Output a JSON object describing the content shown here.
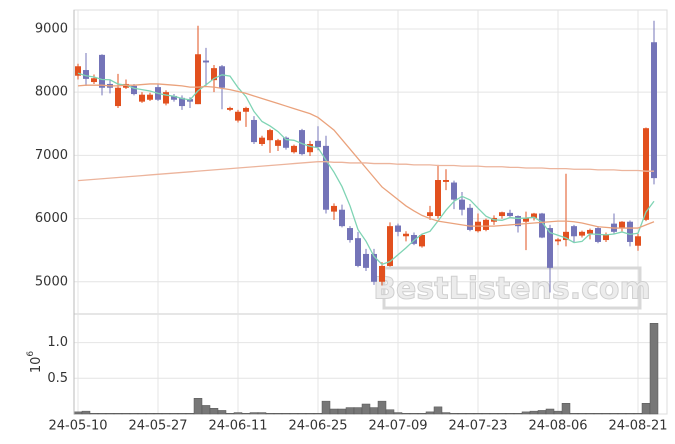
{
  "chart_data": [
    {
      "type": "candlestick",
      "open": [
        8260,
        8350,
        8160,
        8590,
        8130,
        7780,
        8070,
        8100,
        7850,
        7880,
        8080,
        7820,
        7940,
        7910,
        7890,
        7810,
        8500,
        8190,
        8410,
        7720,
        7550,
        7690,
        7560,
        7180,
        7240,
        7150,
        7280,
        7050,
        7400,
        7050,
        7230,
        7150,
        6110,
        6140,
        5850,
        5690,
        5440,
        5440,
        5000,
        5250,
        5890,
        5720,
        5740,
        5560,
        6040,
        6040,
        6580,
        6570,
        6300,
        6170,
        5800,
        5820,
        5950,
        6040,
        6090,
        6040,
        5950,
        6010,
        6080,
        5850,
        5640,
        5660,
        5880,
        5730,
        5760,
        5850,
        5660,
        5920,
        5850,
        5950,
        5570,
        5980,
        8790
      ],
      "high": [
        8450,
        8620,
        8280,
        8600,
        8200,
        8290,
        8200,
        8130,
        8000,
        7990,
        8130,
        8030,
        7970,
        7950,
        7920,
        9050,
        8700,
        8430,
        8430,
        7770,
        7720,
        7770,
        7620,
        7310,
        7420,
        7260,
        7300,
        7170,
        7420,
        7230,
        7460,
        7310,
        6240,
        6220,
        5880,
        5790,
        5520,
        5520,
        5310,
        5940,
        5920,
        5800,
        5780,
        5760,
        6200,
        6850,
        6780,
        6600,
        6420,
        6230,
        6080,
        6000,
        6050,
        6110,
        6140,
        6050,
        6110,
        6090,
        6090,
        5900,
        5690,
        6710,
        5900,
        5810,
        5840,
        5880,
        5780,
        6080,
        5960,
        5970,
        5760,
        7440,
        9130
      ],
      "low": [
        8200,
        8100,
        8130,
        7950,
        7980,
        7750,
        8050,
        7950,
        7830,
        7860,
        7860,
        7790,
        7850,
        7720,
        7750,
        7810,
        8100,
        8000,
        7730,
        7700,
        7520,
        7450,
        7180,
        7150,
        7040,
        7070,
        7090,
        7030,
        7000,
        6990,
        7080,
        6080,
        5980,
        5860,
        5620,
        5230,
        5170,
        4950,
        4940,
        5240,
        5720,
        5640,
        5580,
        5540,
        5980,
        6000,
        6450,
        6150,
        6050,
        5800,
        5780,
        5800,
        5900,
        6000,
        6020,
        5780,
        5500,
        5970,
        5690,
        4830,
        5580,
        5560,
        5620,
        5700,
        5670,
        5610,
        5630,
        5750,
        5780,
        5560,
        5490,
        5960,
        6540
      ],
      "close": [
        8410,
        8210,
        8220,
        8070,
        8070,
        8070,
        8130,
        7970,
        7960,
        7960,
        7880,
        8000,
        7880,
        7780,
        7850,
        8600,
        8470,
        8380,
        8070,
        7750,
        7690,
        7750,
        7210,
        7280,
        7400,
        7240,
        7120,
        7150,
        7020,
        7180,
        7130,
        6140,
        6200,
        5880,
        5660,
        5250,
        5220,
        5000,
        5250,
        5880,
        5790,
        5760,
        5600,
        5740,
        6100,
        6610,
        6610,
        6300,
        6140,
        5820,
        5950,
        5980,
        6010,
        6100,
        6040,
        5880,
        6010,
        6080,
        5700,
        5220,
        5670,
        5790,
        5720,
        5790,
        5820,
        5630,
        5750,
        5790,
        5950,
        5630,
        5720,
        7430,
        6640
      ],
      "up_color": "#e2501e",
      "down_color": "#7474b8",
      "moving_averages": [
        {
          "color": "#7fd4b4",
          "values": [
            8300,
            8260,
            8240,
            8200,
            8196,
            8128,
            8112,
            8062,
            8040,
            8018,
            7980,
            7954,
            7936,
            7900,
            7878,
            8022,
            8116,
            8216,
            8274,
            8254,
            8072,
            7928,
            7694,
            7536,
            7466,
            7376,
            7250,
            7238,
            7186,
            7142,
            7120,
            6924,
            6734,
            6506,
            6202,
            5826,
            5642,
            5402,
            5276,
            5320,
            5428,
            5536,
            5656,
            5754,
            5798,
            5962,
            6132,
            6272,
            6352,
            6296,
            6164,
            6038,
            5980,
            5972,
            6016,
            6002,
            6008,
            6022,
            5942,
            5778,
            5736,
            5692,
            5620,
            5638,
            5758,
            5750,
            5742,
            5756,
            5788,
            5750,
            5768,
            6104,
            6274
          ]
        },
        {
          "color": "#eaa27c",
          "values": [
            8100,
            8110,
            8110,
            8110,
            8100,
            8100,
            8110,
            8110,
            8120,
            8130,
            8130,
            8120,
            8110,
            8100,
            8080,
            8080,
            8090,
            8080,
            8060,
            8040,
            8010,
            7980,
            7940,
            7900,
            7860,
            7820,
            7780,
            7740,
            7700,
            7660,
            7600,
            7500,
            7400,
            7250,
            7100,
            6950,
            6800,
            6650,
            6500,
            6400,
            6300,
            6200,
            6120,
            6050,
            6000,
            5960,
            5940,
            5920,
            5900,
            5880,
            5880,
            5880,
            5880,
            5890,
            5900,
            5910,
            5920,
            5930,
            5940,
            5950,
            5960,
            5960,
            5950,
            5930,
            5900,
            5870,
            5860,
            5850,
            5850,
            5850,
            5850,
            5900,
            5950
          ]
        },
        {
          "color": "#ecb49c",
          "values": [
            6600,
            6610,
            6620,
            6630,
            6640,
            6650,
            6660,
            6670,
            6680,
            6690,
            6700,
            6710,
            6720,
            6730,
            6740,
            6750,
            6760,
            6770,
            6780,
            6790,
            6800,
            6810,
            6820,
            6830,
            6840,
            6850,
            6860,
            6870,
            6880,
            6890,
            6900,
            6900,
            6890,
            6890,
            6880,
            6880,
            6880,
            6870,
            6870,
            6870,
            6860,
            6860,
            6850,
            6850,
            6850,
            6840,
            6840,
            6840,
            6830,
            6830,
            6830,
            6820,
            6820,
            6820,
            6810,
            6810,
            6800,
            6800,
            6800,
            6790,
            6790,
            6790,
            6780,
            6780,
            6780,
            6770,
            6770,
            6770,
            6760,
            6760,
            6760,
            6750,
            6750
          ]
        }
      ],
      "ylim": [
        4490,
        9300
      ],
      "yticks": [
        5000,
        6000,
        7000,
        8000,
        9000
      ],
      "grid": true,
      "watermark": "BestListens.com"
    },
    {
      "type": "bar",
      "categories": [
        "24-05-10",
        null,
        null,
        null,
        null,
        null,
        null,
        null,
        null,
        null,
        "24-05-27",
        null,
        null,
        null,
        null,
        null,
        null,
        null,
        null,
        null,
        "24-06-11",
        null,
        null,
        null,
        null,
        null,
        null,
        null,
        null,
        null,
        "24-06-25",
        null,
        null,
        null,
        null,
        null,
        null,
        null,
        null,
        null,
        "24-07-09",
        null,
        null,
        null,
        null,
        null,
        null,
        null,
        null,
        null,
        "24-07-23",
        null,
        null,
        null,
        null,
        null,
        null,
        null,
        null,
        null,
        "24-08-06",
        null,
        null,
        null,
        null,
        null,
        null,
        null,
        null,
        null,
        "24-08-21",
        null,
        null
      ],
      "values": [
        0.03,
        0.04,
        0.01,
        0.01,
        0.01,
        0.01,
        0.01,
        0.01,
        0.01,
        0.01,
        0.01,
        0.01,
        0.01,
        0.01,
        0.01,
        0.22,
        0.12,
        0.08,
        0.05,
        0.01,
        0.02,
        0.01,
        0.02,
        0.02,
        0.01,
        0.01,
        0.01,
        0.01,
        0.01,
        0.01,
        0.01,
        0.18,
        0.07,
        0.07,
        0.09,
        0.09,
        0.14,
        0.09,
        0.18,
        0.06,
        0.02,
        0.01,
        0.01,
        0.01,
        0.03,
        0.1,
        0.02,
        0.01,
        0.01,
        0.01,
        0.01,
        0.01,
        0.01,
        0.01,
        0.01,
        0.01,
        0.03,
        0.04,
        0.05,
        0.07,
        0.04,
        0.15,
        0.01,
        0.01,
        0.01,
        0.01,
        0.01,
        0.01,
        0.01,
        0.01,
        0.01,
        0.15,
        1.27
      ],
      "color": "#777777",
      "ylim": [
        0,
        1.4
      ],
      "yticks": [
        0.5,
        {
          "value": 1,
          "label": "1.0"
        }
      ],
      "y_multiplier": {
        "base": "10",
        "exponent": "6"
      },
      "grid": true
    }
  ]
}
